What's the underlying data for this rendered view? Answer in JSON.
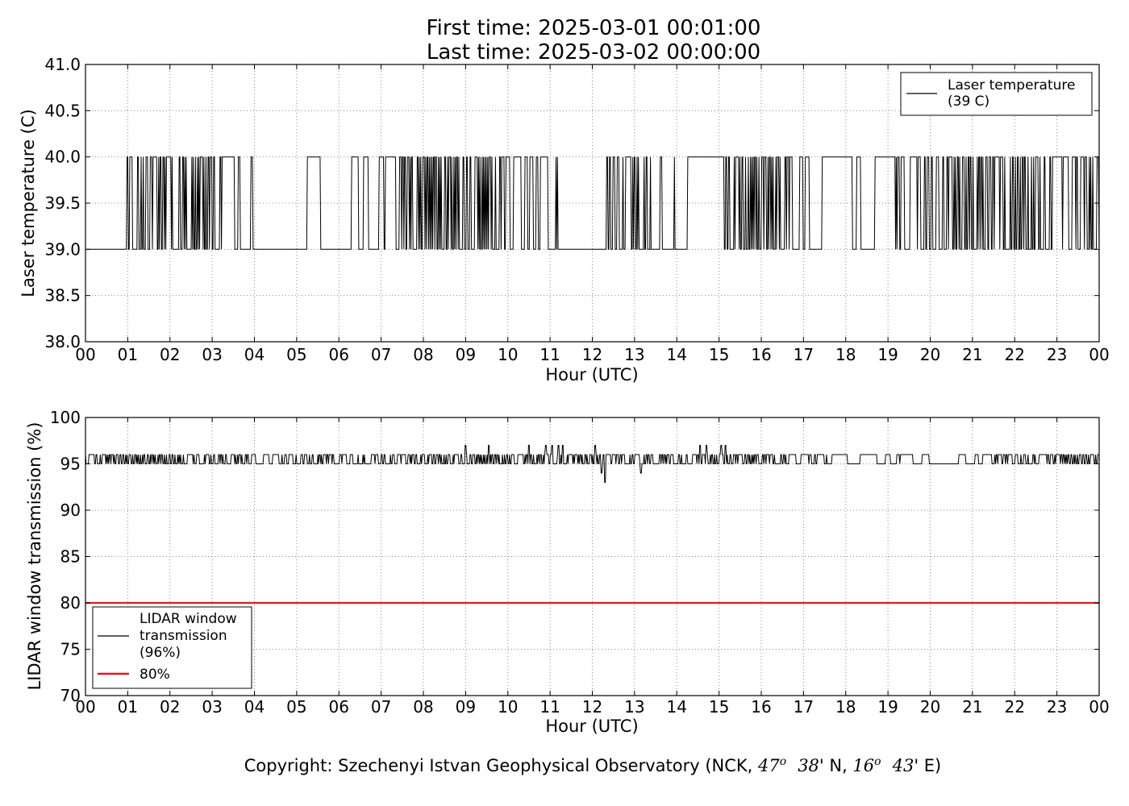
{
  "header": {
    "title_line1": "First time: 2025-03-01 00:01:00",
    "title_line2": "Last time: 2025-03-02 00:00:00"
  },
  "footer": {
    "copyright_prefix": "Copyright: Szechenyi Istvan Geophysical Observatory (NCK, ",
    "lat_deg": "47",
    "lat_sup": "o",
    "lat_min": "38",
    "lat_suffix": "' N, ",
    "lon_deg": "16",
    "lon_sup": "o",
    "lon_min": "43",
    "lon_suffix": "' E)"
  },
  "colors": {
    "series_line": "#000000",
    "threshold_line": "#e41a1c",
    "grid": "#888888"
  },
  "chart_data": [
    {
      "type": "line",
      "ylabel": "Laser temperature (C)",
      "xlabel": "Hour (UTC)",
      "xlim": [
        0,
        24
      ],
      "ylim": [
        38.0,
        41.0
      ],
      "x_ticks": [
        "00",
        "01",
        "02",
        "03",
        "04",
        "05",
        "06",
        "07",
        "08",
        "09",
        "10",
        "11",
        "12",
        "13",
        "14",
        "15",
        "16",
        "17",
        "18",
        "19",
        "20",
        "21",
        "22",
        "23",
        "00"
      ],
      "y_ticks": [
        "38.0",
        "38.5",
        "39.0",
        "39.5",
        "40.0",
        "40.5",
        "41.0"
      ],
      "grid": true,
      "legend_position": "top-right",
      "series": [
        {
          "name": "Laser temperature\n(39 C)",
          "legend_line1": "Laser temperature",
          "legend_line2": "(39 C)",
          "values": [
            39.0,
            40.0
          ],
          "flip_density": [
            0.15,
            0.1,
            0.05,
            0.05,
            0.04,
            0.05,
            0.25,
            0.55,
            0.65,
            0.55,
            0.55,
            0.7,
            0.5,
            0.45,
            0.45,
            0.55,
            0.55,
            0.4,
            0.35,
            0.3,
            0.3,
            0.25,
            0.2,
            0.1,
            0.05,
            0.05,
            0.0,
            0.0,
            0.0,
            0.0,
            0.04,
            0.05,
            0.05,
            0.05,
            0.0,
            0.0,
            0.0,
            0.05,
            0.05,
            0.05,
            0.1,
            0.2,
            0.4,
            0.4,
            0.15,
            0.35,
            0.6,
            0.8,
            0.85,
            0.65,
            0.55,
            0.65,
            0.7,
            0.7,
            0.55,
            0.6,
            0.8,
            0.8,
            0.55,
            0.55,
            0.35,
            0.35,
            0.35,
            0.3,
            0.25,
            0.25,
            0.3,
            0.3,
            0.0,
            0.0,
            0.0,
            0.0,
            0.0,
            0.0,
            0.15,
            0.2,
            0.2,
            0.4,
            0.4,
            0.3,
            0.2,
            0.2,
            0.2,
            0.2,
            0.1,
            0.1,
            0.0,
            0.0,
            0.0,
            0.0,
            0.5,
            0.55,
            0.6,
            0.7,
            0.7,
            0.7,
            0.7,
            0.7,
            0.6,
            0.5,
            0.45,
            0.2,
            0.2,
            0.15,
            0.1,
            0.0,
            0.0,
            0.0,
            0.15,
            0.15,
            0.2,
            0.15,
            0.1,
            0.0,
            0.0,
            0.2,
            0.2,
            0.2,
            0.3,
            0.3,
            0.35,
            0.5,
            0.5,
            0.55,
            0.55,
            0.5,
            0.5,
            0.4,
            0.4,
            0.45,
            0.45,
            0.5,
            0.5,
            0.45,
            0.4,
            0.4,
            0.4,
            0.4,
            0.4,
            0.4,
            0.4,
            0.4,
            0.4,
            0.4
          ]
        }
      ]
    },
    {
      "type": "line",
      "ylabel": "LIDAR window transmission (%)",
      "xlabel": "Hour (UTC)",
      "xlim": [
        0,
        24
      ],
      "ylim": [
        70,
        100
      ],
      "x_ticks": [
        "00",
        "01",
        "02",
        "03",
        "04",
        "05",
        "06",
        "07",
        "08",
        "09",
        "10",
        "11",
        "12",
        "13",
        "14",
        "15",
        "16",
        "17",
        "18",
        "19",
        "20",
        "21",
        "22",
        "23",
        "00"
      ],
      "y_ticks": [
        "70",
        "75",
        "80",
        "85",
        "90",
        "95",
        "100"
      ],
      "grid": true,
      "legend_position": "bottom-left",
      "series": [
        {
          "name": "LIDAR window\ntransmission\n(96%)",
          "legend_line1": "LIDAR window",
          "legend_line2": "transmission",
          "legend_line3": "(96%)",
          "values": [
            95,
            96
          ],
          "flip_density": [
            0.6,
            0.55,
            0.6,
            0.55,
            0.55,
            0.5,
            0.5,
            0.55,
            0.5,
            0.5,
            0.5,
            0.55,
            0.55,
            0.5,
            0.4,
            0.35,
            0.4,
            0.45,
            0.4,
            0.35,
            0.4,
            0.45,
            0.4,
            0.35,
            0.3,
            0.25,
            0.2,
            0.2,
            0.25,
            0.3,
            0.35,
            0.35,
            0.4,
            0.4,
            0.35,
            0.35,
            0.45,
            0.45,
            0.5,
            0.5,
            0.45,
            0.45,
            0.4,
            0.4,
            0.4,
            0.4,
            0.45,
            0.45,
            0.5,
            0.55,
            0.55,
            0.55,
            0.55,
            0.55,
            0.55,
            0.55,
            0.6,
            0.6,
            0.6,
            0.6,
            0.6,
            0.55,
            0.55,
            0.55,
            0.55,
            0.55,
            0.55,
            0.55,
            0.55,
            0.55,
            0.6,
            0.6,
            0.55,
            0.55,
            0.45,
            0.45,
            0.4,
            0.4,
            0.4,
            0.4,
            0.4,
            0.35,
            0.35,
            0.35,
            0.35,
            0.4,
            0.45,
            0.45,
            0.45,
            0.5,
            0.55,
            0.6,
            0.6,
            0.6,
            0.6,
            0.6,
            0.55,
            0.5,
            0.45,
            0.4,
            0.35,
            0.35,
            0.3,
            0.25,
            0.2,
            0.15,
            0.1,
            0.1,
            0.1,
            0.1,
            0.1,
            0.1,
            0.1,
            0.15,
            0.15,
            0.15,
            0.1,
            0.05,
            0.05,
            0.05,
            0.05,
            0.05,
            0.05,
            0.05,
            0.05,
            0.05,
            0.05,
            0.05,
            0.45,
            0.5,
            0.55,
            0.55,
            0.55,
            0.55,
            0.5,
            0.5,
            0.5,
            0.5,
            0.5,
            0.5,
            0.5,
            0.5,
            0.5,
            0.5
          ],
          "spikes": [
            {
              "x": 9.0,
              "y": 97
            },
            {
              "x": 9.55,
              "y": 97
            },
            {
              "x": 10.5,
              "y": 97
            },
            {
              "x": 10.9,
              "y": 97
            },
            {
              "x": 11.05,
              "y": 97
            },
            {
              "x": 11.2,
              "y": 97
            },
            {
              "x": 11.3,
              "y": 97
            },
            {
              "x": 12.07,
              "y": 97
            },
            {
              "x": 12.15,
              "y": 95
            },
            {
              "x": 12.22,
              "y": 94
            },
            {
              "x": 12.3,
              "y": 93
            },
            {
              "x": 13.15,
              "y": 94
            },
            {
              "x": 14.55,
              "y": 97
            },
            {
              "x": 14.7,
              "y": 97
            },
            {
              "x": 15.05,
              "y": 97
            },
            {
              "x": 15.15,
              "y": 97
            }
          ]
        },
        {
          "name": "80%",
          "legend_line1": "80%",
          "y": 80
        }
      ]
    }
  ]
}
